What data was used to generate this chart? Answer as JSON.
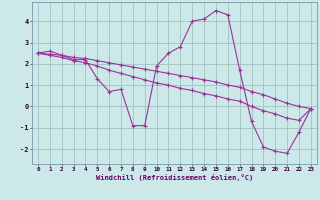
{
  "xlabel": "Windchill (Refroidissement éolien,°C)",
  "background_color": "#cde8e8",
  "grid_color": "#99bbbb",
  "line_color": "#993399",
  "spine_color": "#7799aa",
  "xlim": [
    -0.5,
    23.5
  ],
  "ylim": [
    -2.7,
    4.9
  ],
  "yticks": [
    -2,
    -1,
    0,
    1,
    2,
    3,
    4
  ],
  "xticks": [
    0,
    1,
    2,
    3,
    4,
    5,
    6,
    7,
    8,
    9,
    10,
    11,
    12,
    13,
    14,
    15,
    16,
    17,
    18,
    19,
    20,
    21,
    22,
    23
  ],
  "series": [
    [
      2.5,
      2.6,
      2.4,
      2.2,
      2.2,
      1.3,
      0.7,
      0.8,
      -0.9,
      -0.9,
      1.9,
      2.5,
      2.8,
      4.0,
      4.1,
      4.5,
      4.3,
      1.7,
      -0.7,
      -1.9,
      -2.1,
      -2.2,
      -1.2,
      -0.1
    ],
    [
      2.5,
      2.4,
      2.3,
      2.15,
      2.05,
      1.9,
      1.7,
      1.55,
      1.4,
      1.25,
      1.1,
      1.0,
      0.85,
      0.75,
      0.6,
      0.5,
      0.35,
      0.25,
      0.0,
      -0.2,
      -0.35,
      -0.55,
      -0.65,
      -0.1
    ],
    [
      2.5,
      2.45,
      2.4,
      2.3,
      2.25,
      2.15,
      2.05,
      1.95,
      1.85,
      1.75,
      1.65,
      1.55,
      1.45,
      1.35,
      1.25,
      1.15,
      1.0,
      0.9,
      0.7,
      0.55,
      0.35,
      0.15,
      0.0,
      -0.1
    ]
  ]
}
